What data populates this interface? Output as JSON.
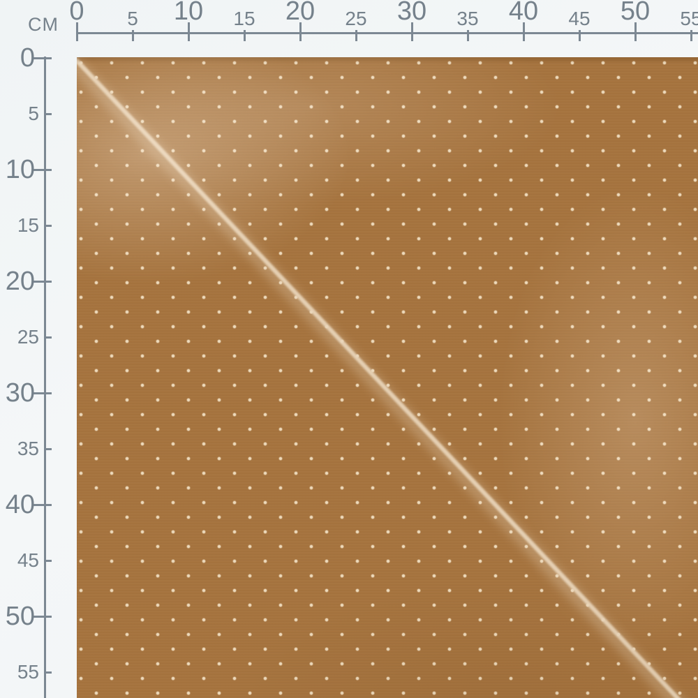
{
  "unit_label": "CM",
  "rulers": {
    "unit": "centimeters",
    "top": {
      "labels": [
        {
          "cm": 0,
          "text": "0",
          "major": true
        },
        {
          "cm": 5,
          "text": "5",
          "major": false
        },
        {
          "cm": 10,
          "text": "10",
          "major": true
        },
        {
          "cm": 15,
          "text": "15",
          "major": false
        },
        {
          "cm": 20,
          "text": "20",
          "major": true
        },
        {
          "cm": 25,
          "text": "25",
          "major": false
        },
        {
          "cm": 30,
          "text": "30",
          "major": true
        },
        {
          "cm": 35,
          "text": "35",
          "major": false
        },
        {
          "cm": 40,
          "text": "40",
          "major": true
        },
        {
          "cm": 45,
          "text": "45",
          "major": false
        },
        {
          "cm": 50,
          "text": "50",
          "major": true
        },
        {
          "cm": 55,
          "text": "55",
          "major": false
        }
      ]
    },
    "left": {
      "labels": [
        {
          "cm": 0,
          "text": "0",
          "major": true
        },
        {
          "cm": 5,
          "text": "5",
          "major": false
        },
        {
          "cm": 10,
          "text": "10",
          "major": true
        },
        {
          "cm": 15,
          "text": "15",
          "major": false
        },
        {
          "cm": 20,
          "text": "20",
          "major": true
        },
        {
          "cm": 25,
          "text": "25",
          "major": false
        },
        {
          "cm": 30,
          "text": "30",
          "major": true
        },
        {
          "cm": 35,
          "text": "35",
          "major": false
        },
        {
          "cm": 40,
          "text": "40",
          "major": true
        },
        {
          "cm": 45,
          "text": "45",
          "major": false
        },
        {
          "cm": 50,
          "text": "50",
          "major": true
        },
        {
          "cm": 55,
          "text": "55",
          "major": false
        }
      ]
    }
  },
  "fabric": {
    "description": "caramel brown fabric swatch with small cream pin dots and a diagonal fold highlight running from the top-left corner to the bottom-right",
    "base_color": "#a6743f",
    "dot_color": "#f1dfc2",
    "fold_highlight_color": "#e9d5ba"
  },
  "colors": {
    "page_background": "#f2f5f6",
    "ruler_line": "#7c8893",
    "ruler_text": "#75818b"
  }
}
